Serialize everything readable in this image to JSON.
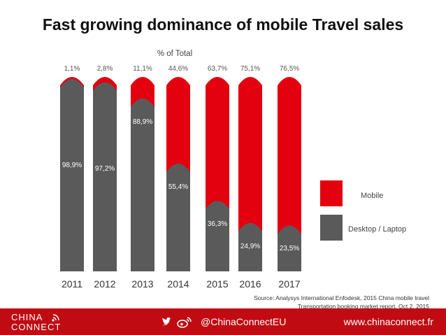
{
  "title": "Fast growing dominance of mobile Travel sales",
  "colors": {
    "mobile": "#e3000f",
    "desktop": "#5a5a5a",
    "footer": "#c00b12"
  },
  "chart_data": {
    "type": "bar",
    "stacked": true,
    "subtitle": "% of Total",
    "categories": [
      "2011",
      "2012",
      "2013",
      "2014",
      "2015",
      "2016",
      "2017"
    ],
    "series": [
      {
        "name": "Desktop / Laptop",
        "values": [
          98.9,
          97.2,
          88.9,
          55.4,
          36.3,
          24.9,
          23.5
        ],
        "labels": [
          "98,9%",
          "97,2%",
          "88,9%",
          "55,4%",
          "36,3%",
          "24,9%",
          "23,5%"
        ]
      },
      {
        "name": "Mobile",
        "values": [
          1.1,
          2.8,
          11.1,
          44.6,
          63.7,
          75.1,
          76.5
        ],
        "labels": [
          "1,1%",
          "2,8%",
          "11,1%",
          "44,6%",
          "63,7%",
          "75,1%",
          "76,5%"
        ]
      }
    ],
    "legend": [
      "Mobile",
      "Desktop / Laptop"
    ],
    "legend_position": "right",
    "ylim": [
      0,
      100
    ]
  },
  "source": {
    "line1": "Source: Analysys International Enfodesk, 2015 China mobile travel",
    "line2": "Transportation booking market report, Oct 2, 2015"
  },
  "footer": {
    "logo_line1": "CHINA",
    "logo_line2": "CONNECT",
    "handle": "@ChinaConnectEU",
    "website": "www.chinaconnect.fr",
    "icons": [
      "twitter-icon",
      "weibo-icon"
    ]
  }
}
